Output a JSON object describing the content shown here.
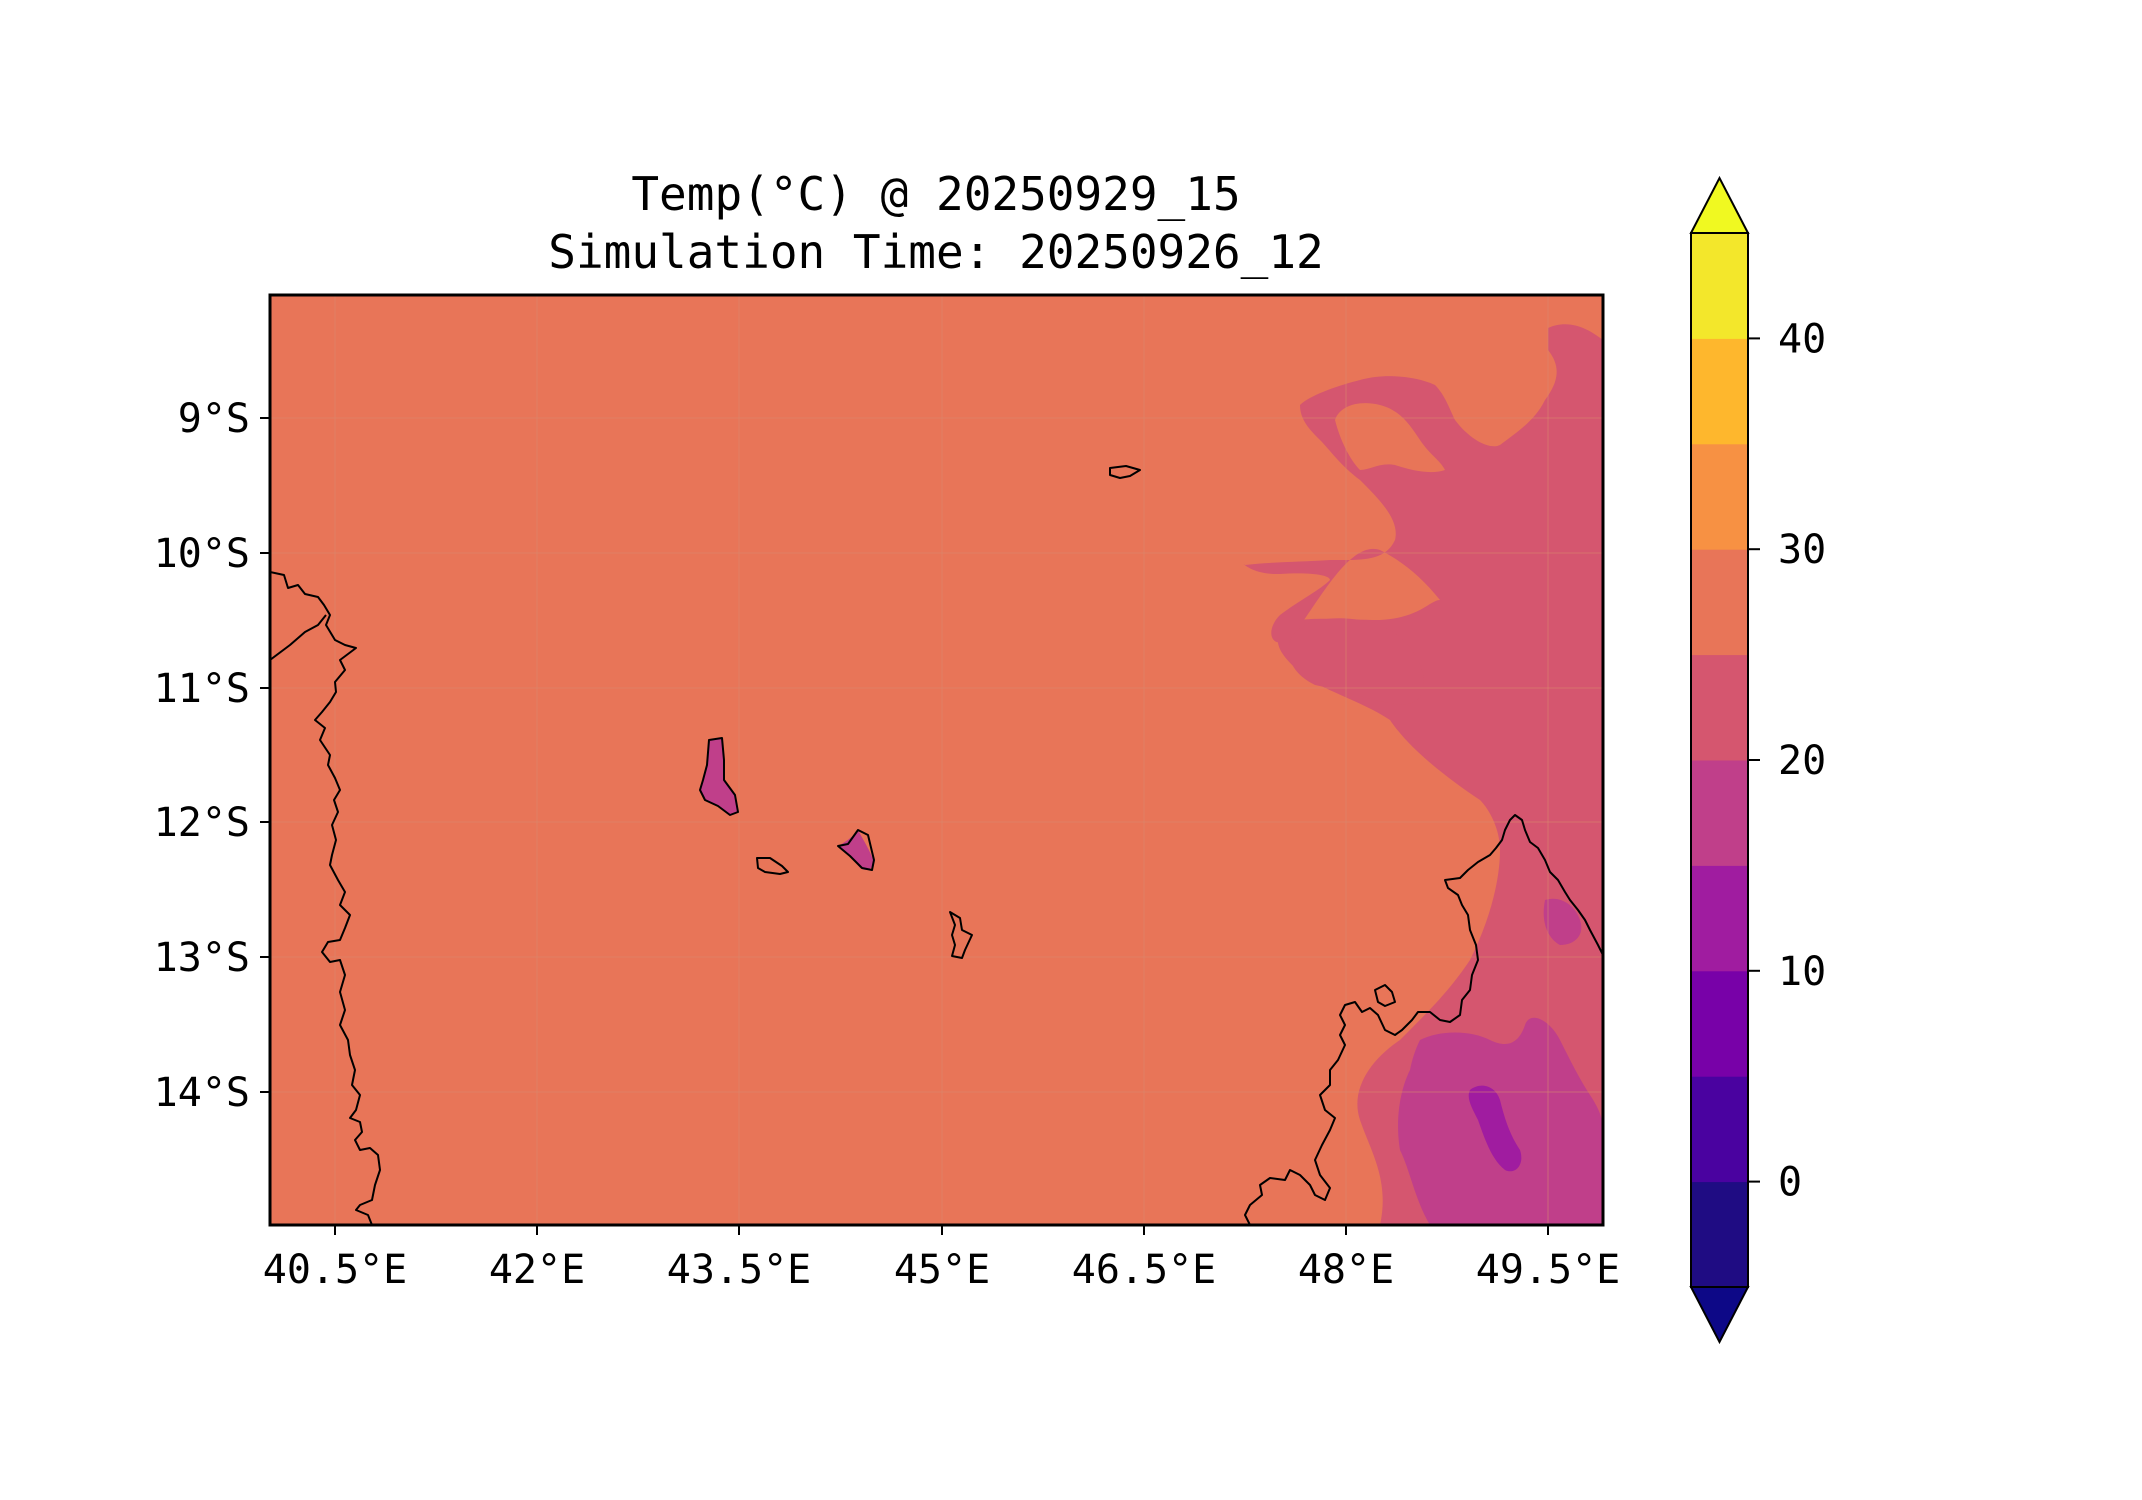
{
  "figure": {
    "title_line1": "Temp(°C) @ 20250929_15",
    "title_line2": "Simulation Time: 20250926_12"
  },
  "map": {
    "x_ticks": [
      "40.5°E",
      "42°E",
      "43.5°E",
      "45°E",
      "46.5°E",
      "48°E",
      "49.5°E"
    ],
    "y_ticks": [
      "9°S",
      "10°S",
      "11°S",
      "12°S",
      "13°S",
      "14°S"
    ]
  },
  "colorbar": {
    "ticks": [
      "40",
      "30",
      "20",
      "10",
      "0"
    ],
    "levels": [
      -5,
      0,
      5,
      10,
      15,
      20,
      25,
      30,
      35,
      40,
      45
    ],
    "colors": [
      "#1f0c83",
      "#4a02a0",
      "#7801a8",
      "#a01ca0",
      "#c03f8a",
      "#d5566f",
      "#e87558",
      "#f79143",
      "#feb72d",
      "#f3e72b"
    ],
    "extend_low_color": "#0d0887",
    "extend_high_color": "#f0f921",
    "dominant_fill": "#e87558"
  }
}
